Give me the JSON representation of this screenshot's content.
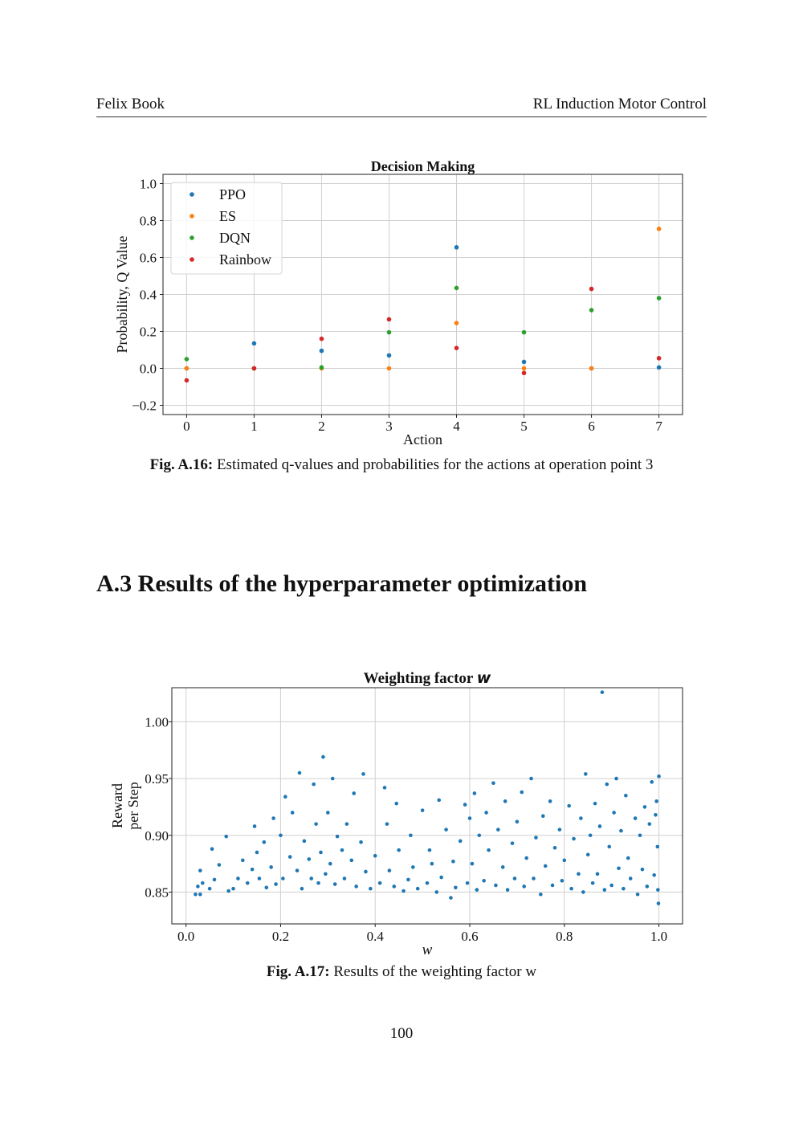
{
  "header": {
    "left": "Felix Book",
    "right": "RL Induction Motor Control"
  },
  "figure1": {
    "caption_label": "Fig. A.16:",
    "caption_text": "Estimated q-values and probabilities for the actions at operation point 3"
  },
  "section": {
    "title": "A.3 Results of the hyperparameter optimization"
  },
  "figure2": {
    "caption_label": "Fig. A.17:",
    "caption_text": "Results of the weighting factor w"
  },
  "page_number": "100",
  "chart_data": [
    {
      "type": "scatter",
      "title": "Decision Making",
      "xlabel": "Action",
      "ylabel": "Probability, Q Value",
      "xlim": [
        -0.35,
        7.35
      ],
      "ylim": [
        -0.25,
        1.05
      ],
      "xticks": [
        0,
        1,
        2,
        3,
        4,
        5,
        6,
        7
      ],
      "yticks": [
        -0.2,
        0.0,
        0.2,
        0.4,
        0.6,
        0.8,
        1.0
      ],
      "grid": true,
      "legend_position": "top-left",
      "series": [
        {
          "name": "PPO",
          "color": "#1f77b4",
          "x": [
            0,
            1,
            2,
            3,
            4,
            5,
            6,
            7
          ],
          "y": [
            0.0,
            0.135,
            0.095,
            0.07,
            0.655,
            0.035,
            0.0,
            0.005
          ]
        },
        {
          "name": "ES",
          "color": "#ff7f0e",
          "x": [
            0,
            1,
            2,
            3,
            4,
            5,
            6,
            7
          ],
          "y": [
            0.0,
            0.0,
            0.0,
            0.0,
            0.245,
            0.0,
            0.0,
            0.755
          ]
        },
        {
          "name": "DQN",
          "color": "#2ca02c",
          "x": [
            0,
            1,
            2,
            3,
            4,
            5,
            6,
            7
          ],
          "y": [
            0.05,
            0.0,
            0.005,
            0.195,
            0.435,
            0.195,
            0.315,
            0.38
          ]
        },
        {
          "name": "Rainbow",
          "color": "#d62728",
          "x": [
            0,
            1,
            2,
            3,
            4,
            5,
            6,
            7
          ],
          "y": [
            -0.065,
            0.0,
            0.16,
            0.265,
            0.11,
            -0.025,
            0.43,
            0.055
          ]
        }
      ]
    },
    {
      "type": "scatter",
      "title": "Weighting factor",
      "title_math": "w",
      "xlabel": "w",
      "ylabel_lines": [
        "Reward",
        "per Step"
      ],
      "xlim": [
        -0.03,
        1.05
      ],
      "ylim": [
        0.822,
        1.03
      ],
      "xticks": [
        0.0,
        0.2,
        0.4,
        0.6,
        0.8,
        1.0
      ],
      "yticks": [
        0.85,
        0.9,
        0.95,
        1.0
      ],
      "grid": true,
      "series": [
        {
          "color": "#1f77b4",
          "points": [
            [
              0.02,
              0.848
            ],
            [
              0.025,
              0.855
            ],
            [
              0.03,
              0.869
            ],
            [
              0.035,
              0.858
            ],
            [
              0.03,
              0.848
            ],
            [
              0.05,
              0.853
            ],
            [
              0.055,
              0.888
            ],
            [
              0.06,
              0.861
            ],
            [
              0.07,
              0.874
            ],
            [
              0.09,
              0.851
            ],
            [
              0.085,
              0.899
            ],
            [
              0.1,
              0.853
            ],
            [
              0.11,
              0.862
            ],
            [
              0.12,
              0.878
            ],
            [
              0.13,
              0.858
            ],
            [
              0.14,
              0.87
            ],
            [
              0.145,
              0.908
            ],
            [
              0.15,
              0.885
            ],
            [
              0.155,
              0.862
            ],
            [
              0.165,
              0.894
            ],
            [
              0.17,
              0.854
            ],
            [
              0.18,
              0.872
            ],
            [
              0.19,
              0.857
            ],
            [
              0.185,
              0.915
            ],
            [
              0.2,
              0.9
            ],
            [
              0.205,
              0.862
            ],
            [
              0.21,
              0.934
            ],
            [
              0.22,
              0.881
            ],
            [
              0.225,
              0.92
            ],
            [
              0.235,
              0.869
            ],
            [
              0.24,
              0.955
            ],
            [
              0.245,
              0.853
            ],
            [
              0.25,
              0.895
            ],
            [
              0.26,
              0.879
            ],
            [
              0.265,
              0.862
            ],
            [
              0.27,
              0.945
            ],
            [
              0.275,
              0.91
            ],
            [
              0.28,
              0.858
            ],
            [
              0.285,
              0.885
            ],
            [
              0.29,
              0.969
            ],
            [
              0.295,
              0.866
            ],
            [
              0.3,
              0.92
            ],
            [
              0.305,
              0.875
            ],
            [
              0.31,
              0.95
            ],
            [
              0.315,
              0.857
            ],
            [
              0.32,
              0.899
            ],
            [
              0.33,
              0.887
            ],
            [
              0.335,
              0.862
            ],
            [
              0.34,
              0.91
            ],
            [
              0.35,
              0.878
            ],
            [
              0.355,
              0.937
            ],
            [
              0.36,
              0.855
            ],
            [
              0.37,
              0.894
            ],
            [
              0.375,
              0.954
            ],
            [
              0.38,
              0.868
            ],
            [
              0.39,
              0.853
            ],
            [
              0.4,
              0.882
            ],
            [
              0.41,
              0.858
            ],
            [
              0.42,
              0.942
            ],
            [
              0.425,
              0.91
            ],
            [
              0.43,
              0.869
            ],
            [
              0.44,
              0.855
            ],
            [
              0.445,
              0.928
            ],
            [
              0.45,
              0.887
            ],
            [
              0.46,
              0.851
            ],
            [
              0.47,
              0.861
            ],
            [
              0.475,
              0.9
            ],
            [
              0.48,
              0.872
            ],
            [
              0.49,
              0.853
            ],
            [
              0.5,
              0.922
            ],
            [
              0.51,
              0.858
            ],
            [
              0.515,
              0.887
            ],
            [
              0.52,
              0.875
            ],
            [
              0.53,
              0.85
            ],
            [
              0.535,
              0.931
            ],
            [
              0.54,
              0.863
            ],
            [
              0.55,
              0.905
            ],
            [
              0.56,
              0.845
            ],
            [
              0.565,
              0.877
            ],
            [
              0.57,
              0.854
            ],
            [
              0.58,
              0.895
            ],
            [
              0.59,
              0.927
            ],
            [
              0.595,
              0.858
            ],
            [
              0.6,
              0.915
            ],
            [
              0.605,
              0.875
            ],
            [
              0.61,
              0.937
            ],
            [
              0.615,
              0.852
            ],
            [
              0.62,
              0.9
            ],
            [
              0.63,
              0.86
            ],
            [
              0.635,
              0.92
            ],
            [
              0.64,
              0.887
            ],
            [
              0.65,
              0.946
            ],
            [
              0.655,
              0.856
            ],
            [
              0.66,
              0.905
            ],
            [
              0.67,
              0.872
            ],
            [
              0.675,
              0.93
            ],
            [
              0.68,
              0.852
            ],
            [
              0.69,
              0.893
            ],
            [
              0.695,
              0.862
            ],
            [
              0.7,
              0.912
            ],
            [
              0.71,
              0.938
            ],
            [
              0.715,
              0.855
            ],
            [
              0.72,
              0.88
            ],
            [
              0.73,
              0.95
            ],
            [
              0.735,
              0.862
            ],
            [
              0.74,
              0.898
            ],
            [
              0.75,
              0.848
            ],
            [
              0.755,
              0.917
            ],
            [
              0.76,
              0.873
            ],
            [
              0.77,
              0.93
            ],
            [
              0.775,
              0.856
            ],
            [
              0.78,
              0.889
            ],
            [
              0.79,
              0.905
            ],
            [
              0.795,
              0.86
            ],
            [
              0.8,
              0.878
            ],
            [
              0.81,
              0.926
            ],
            [
              0.815,
              0.853
            ],
            [
              0.82,
              0.897
            ],
            [
              0.83,
              0.866
            ],
            [
              0.835,
              0.915
            ],
            [
              0.84,
              0.85
            ],
            [
              0.845,
              0.954
            ],
            [
              0.85,
              0.883
            ],
            [
              0.855,
              0.9
            ],
            [
              0.86,
              0.858
            ],
            [
              0.865,
              0.928
            ],
            [
              0.87,
              0.866
            ],
            [
              0.875,
              0.908
            ],
            [
              0.88,
              1.026
            ],
            [
              0.885,
              0.852
            ],
            [
              0.89,
              0.945
            ],
            [
              0.895,
              0.89
            ],
            [
              0.9,
              0.856
            ],
            [
              0.905,
              0.92
            ],
            [
              0.91,
              0.95
            ],
            [
              0.915,
              0.871
            ],
            [
              0.92,
              0.904
            ],
            [
              0.925,
              0.853
            ],
            [
              0.93,
              0.935
            ],
            [
              0.935,
              0.88
            ],
            [
              0.94,
              0.862
            ],
            [
              0.95,
              0.915
            ],
            [
              0.955,
              0.848
            ],
            [
              0.96,
              0.9
            ],
            [
              0.965,
              0.87
            ],
            [
              0.97,
              0.925
            ],
            [
              0.975,
              0.855
            ],
            [
              0.98,
              0.91
            ],
            [
              0.985,
              0.947
            ],
            [
              0.99,
              0.865
            ],
            [
              0.995,
              0.93
            ],
            [
              0.998,
              0.852
            ],
            [
              1.0,
              0.952
            ],
            [
              0.997,
              0.89
            ],
            [
              0.993,
              0.918
            ],
            [
              0.999,
              0.84
            ]
          ]
        }
      ]
    }
  ]
}
